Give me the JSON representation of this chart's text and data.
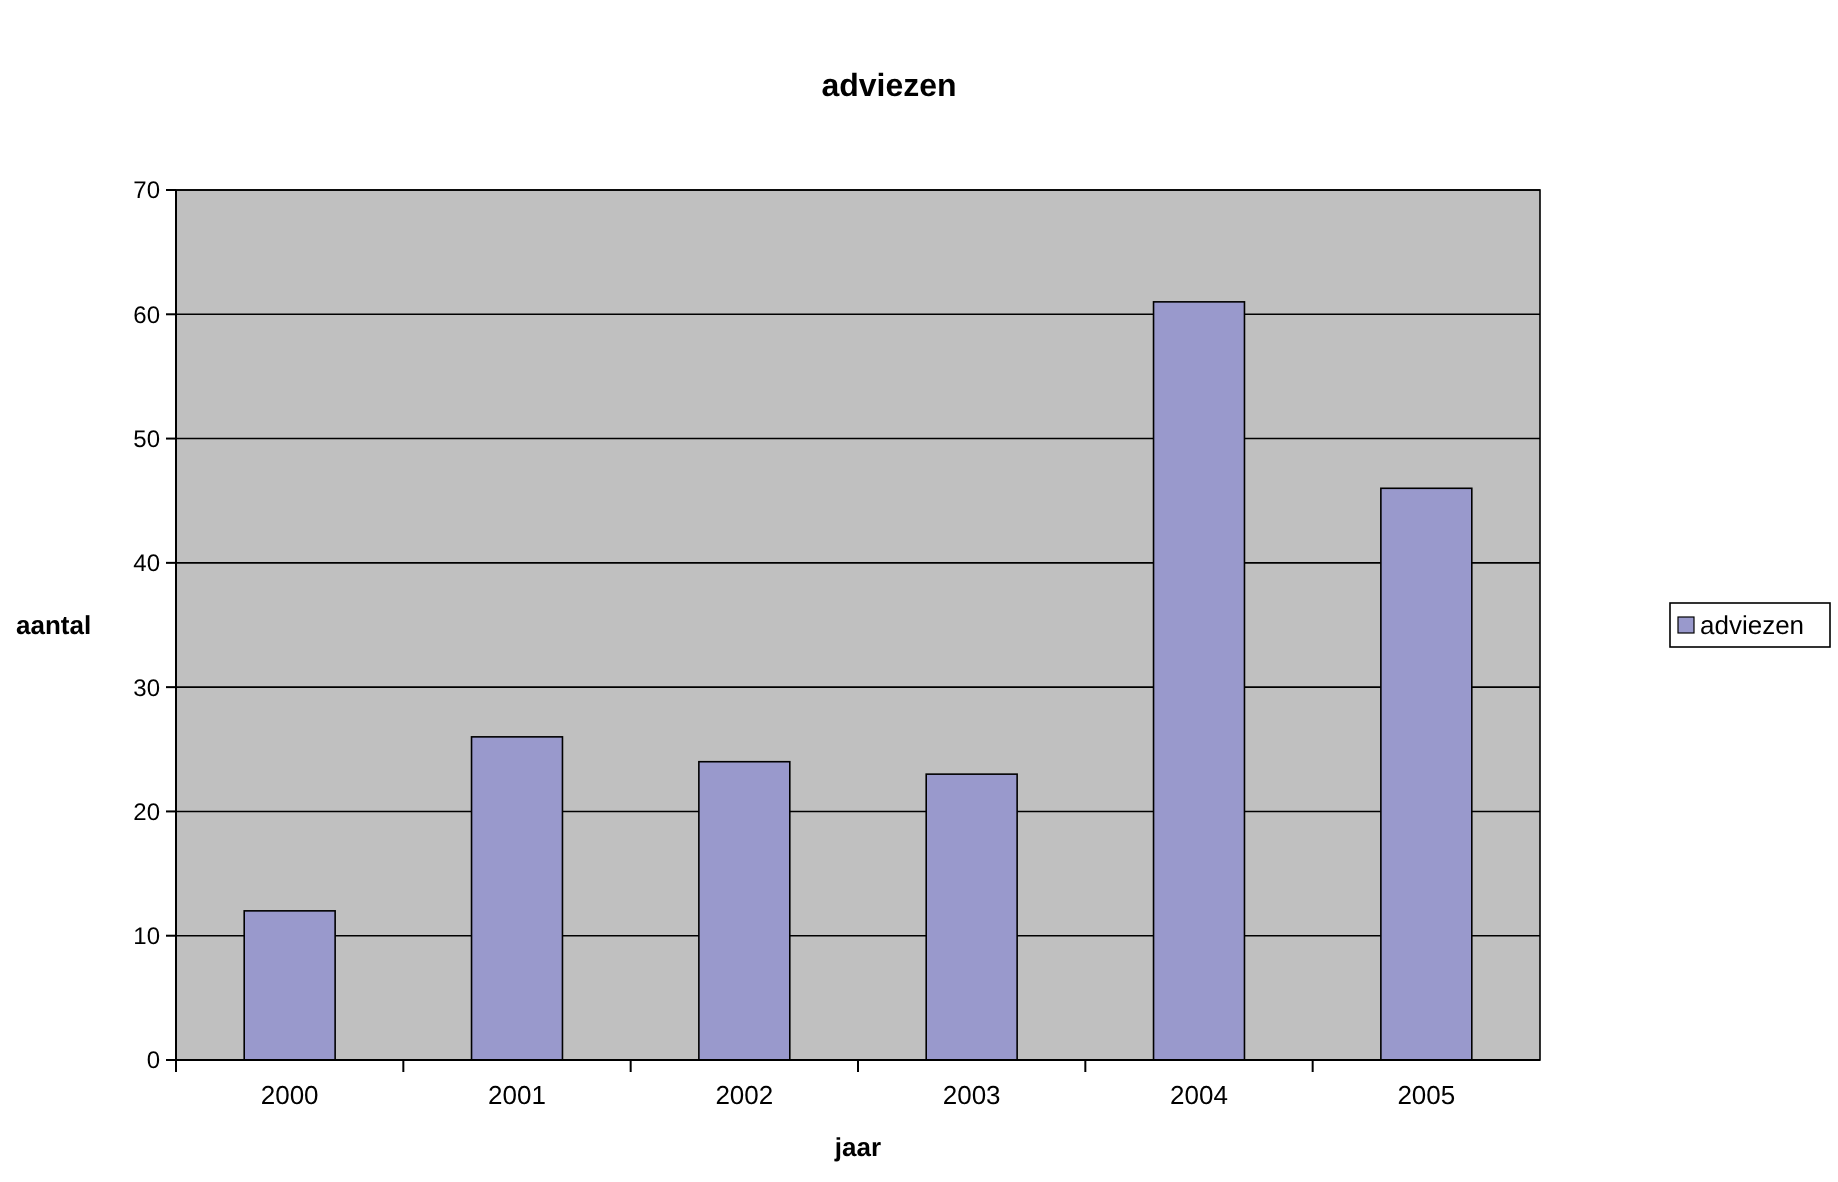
{
  "chart_data": {
    "type": "bar",
    "title": "adviezen",
    "xlabel": "jaar",
    "ylabel": "aantal",
    "categories": [
      "2000",
      "2001",
      "2002",
      "2003",
      "2004",
      "2005"
    ],
    "series": [
      {
        "name": "adviezen",
        "color": "#9999cc",
        "values": [
          12,
          26,
          24,
          23,
          61,
          46
        ]
      }
    ],
    "ylim": [
      0,
      70
    ],
    "yticks": [
      0,
      10,
      20,
      30,
      40,
      50,
      60,
      70
    ],
    "grid": "y",
    "legend": "right"
  }
}
